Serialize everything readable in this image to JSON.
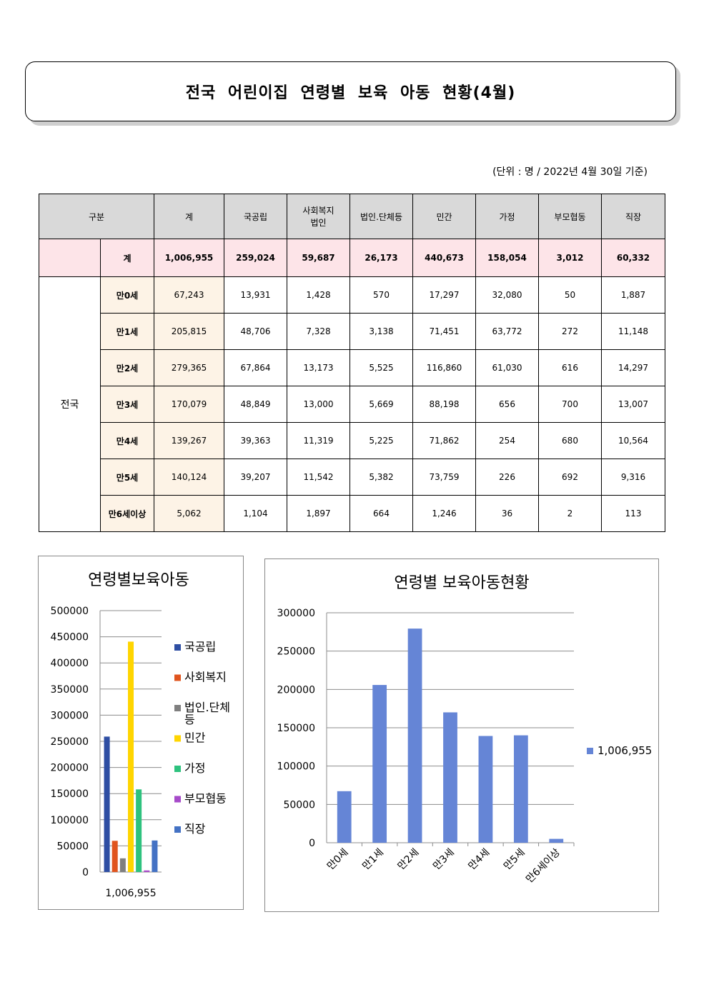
{
  "title": "전국 어린이집 연령별 보육 아동 현황(4월)",
  "unit_note": "(단위 : 명 / 2022년 4월 30일 기준)",
  "table": {
    "headers": [
      "구분",
      "계",
      "국공립",
      "사회복지\n법인",
      "법인.단체등",
      "민간",
      "가정",
      "부모협동",
      "직장"
    ],
    "region": "전국",
    "total_label": "계",
    "total": [
      "1,006,955",
      "259,024",
      "59,687",
      "26,173",
      "440,673",
      "158,054",
      "3,012",
      "60,332"
    ],
    "rows": [
      {
        "age": "만0세",
        "values": [
          "67,243",
          "13,931",
          "1,428",
          "570",
          "17,297",
          "32,080",
          "50",
          "1,887"
        ]
      },
      {
        "age": "만1세",
        "values": [
          "205,815",
          "48,706",
          "7,328",
          "3,138",
          "71,451",
          "63,772",
          "272",
          "11,148"
        ]
      },
      {
        "age": "만2세",
        "values": [
          "279,365",
          "67,864",
          "13,173",
          "5,525",
          "116,860",
          "61,030",
          "616",
          "14,297"
        ]
      },
      {
        "age": "만3세",
        "values": [
          "170,079",
          "48,849",
          "13,000",
          "5,669",
          "88,198",
          "656",
          "700",
          "13,007"
        ]
      },
      {
        "age": "만4세",
        "values": [
          "139,267",
          "39,363",
          "11,319",
          "5,225",
          "71,862",
          "254",
          "680",
          "10,564"
        ]
      },
      {
        "age": "만5세",
        "values": [
          "140,124",
          "39,207",
          "11,542",
          "5,382",
          "73,759",
          "226",
          "692",
          "9,316"
        ]
      },
      {
        "age": "만6세이상",
        "values": [
          "5,062",
          "1,104",
          "1,897",
          "664",
          "1,246",
          "36",
          "2",
          "113"
        ]
      }
    ]
  },
  "chart_data": [
    {
      "type": "bar",
      "title": "연령별보육아동",
      "categories": [
        "1,006,955"
      ],
      "ylim": [
        0,
        500000
      ],
      "yticks": [
        0,
        50000,
        100000,
        150000,
        200000,
        250000,
        300000,
        350000,
        400000,
        450000,
        500000
      ],
      "legend_position": "right",
      "series": [
        {
          "name": "국공립",
          "values": [
            259024
          ],
          "color": "#2e4ea3"
        },
        {
          "name": "사회복지",
          "values": [
            59687
          ],
          "color": "#e0541e"
        },
        {
          "name": "법인.단체등",
          "values": [
            26173
          ],
          "color": "#7f7f7f"
        },
        {
          "name": "민간",
          "values": [
            440673
          ],
          "color": "#ffd500"
        },
        {
          "name": "가정",
          "values": [
            158054
          ],
          "color": "#2ec27e"
        },
        {
          "name": "부모협동",
          "values": [
            3012
          ],
          "color": "#a64ac9"
        },
        {
          "name": "직장",
          "values": [
            60332
          ],
          "color": "#4472c4"
        }
      ]
    },
    {
      "type": "bar",
      "title": "연령별 보육아동현황",
      "categories": [
        "만0세",
        "만1세",
        "만2세",
        "만3세",
        "만4세",
        "만5세",
        "만6세이상"
      ],
      "ylim": [
        0,
        300000
      ],
      "yticks": [
        0,
        50000,
        100000,
        150000,
        200000,
        250000,
        300000
      ],
      "legend_position": "right",
      "series": [
        {
          "name": "1,006,955",
          "values": [
            67243,
            205815,
            279365,
            170079,
            139267,
            140124,
            5062
          ],
          "color": "#6585d6"
        }
      ]
    }
  ]
}
